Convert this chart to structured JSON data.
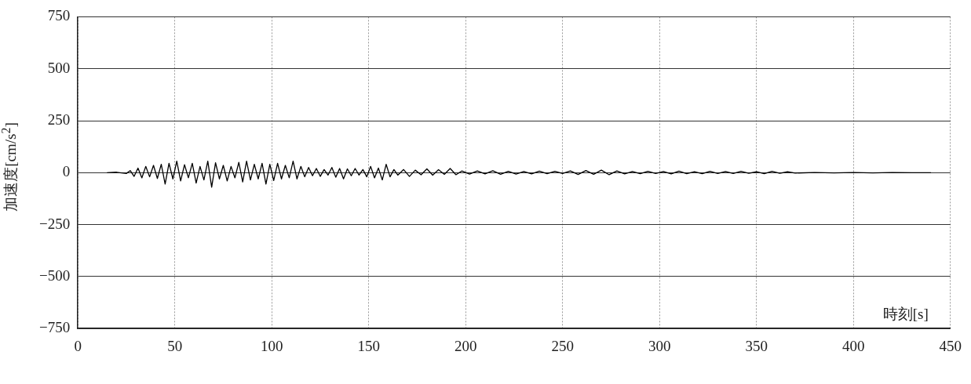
{
  "chart_data": {
    "type": "line",
    "ylabel": "加速度[cm/s$^{2}$]",
    "xlabel": "時刻[s]",
    "xlim": [
      0,
      450
    ],
    "xticks": [
      0,
      50,
      100,
      150,
      200,
      250,
      300,
      350,
      400,
      450
    ],
    "ylim": [
      -750,
      750
    ],
    "yticks": [
      -750,
      -500,
      -250,
      0,
      250,
      500,
      750
    ],
    "grid": true,
    "marker": "none",
    "line_style": "solid",
    "series": [
      {
        "color": "#000000",
        "x": [
          15,
          20,
          25,
          27,
          29,
          31,
          33,
          35,
          37,
          39,
          41,
          43,
          45,
          47,
          49,
          51,
          53,
          55,
          57,
          59,
          61,
          63,
          65,
          67,
          69,
          71,
          73,
          75,
          77,
          79,
          81,
          83,
          85,
          87,
          89,
          91,
          93,
          95,
          97,
          99,
          101,
          103,
          105,
          107,
          109,
          111,
          113,
          115,
          117,
          119,
          121,
          123,
          125,
          127,
          129,
          131,
          133,
          135,
          137,
          139,
          141,
          143,
          145,
          147,
          149,
          151,
          153,
          155,
          157,
          159,
          161,
          163,
          165,
          168,
          171,
          174,
          177,
          180,
          183,
          186,
          189,
          192,
          195,
          198,
          202,
          206,
          210,
          214,
          218,
          222,
          226,
          230,
          234,
          238,
          242,
          246,
          250,
          254,
          258,
          262,
          266,
          270,
          274,
          278,
          282,
          286,
          290,
          294,
          298,
          302,
          306,
          310,
          314,
          318,
          322,
          326,
          330,
          334,
          338,
          342,
          346,
          350,
          354,
          358,
          362,
          366,
          370,
          380,
          390,
          400,
          410,
          420,
          430,
          440
        ],
        "values": [
          0,
          2,
          -4,
          10,
          -18,
          22,
          -25,
          30,
          -20,
          35,
          -28,
          40,
          -55,
          45,
          -30,
          55,
          -40,
          38,
          -25,
          45,
          -50,
          30,
          -35,
          55,
          -70,
          48,
          -30,
          35,
          -40,
          30,
          -25,
          50,
          -45,
          55,
          -35,
          40,
          -30,
          45,
          -55,
          40,
          -38,
          45,
          -30,
          35,
          -25,
          55,
          -30,
          30,
          -20,
          25,
          -15,
          20,
          -18,
          15,
          -12,
          25,
          -22,
          20,
          -30,
          18,
          -15,
          20,
          -12,
          15,
          -20,
          30,
          -25,
          22,
          -35,
          40,
          -20,
          15,
          -12,
          15,
          -18,
          12,
          -10,
          18,
          -12,
          14,
          -8,
          20,
          -10,
          8,
          -7,
          8,
          -6,
          9,
          -8,
          6,
          -7,
          5,
          -6,
          7,
          -5,
          6,
          -4,
          8,
          -9,
          10,
          -8,
          12,
          -10,
          8,
          -6,
          5,
          -5,
          6,
          -4,
          5,
          -6,
          7,
          -5,
          4,
          -5,
          6,
          -4,
          5,
          -4,
          6,
          -3,
          4,
          -5,
          6,
          -3,
          4,
          -2,
          1,
          -1,
          1,
          -1,
          1,
          0,
          0
        ]
      }
    ]
  }
}
